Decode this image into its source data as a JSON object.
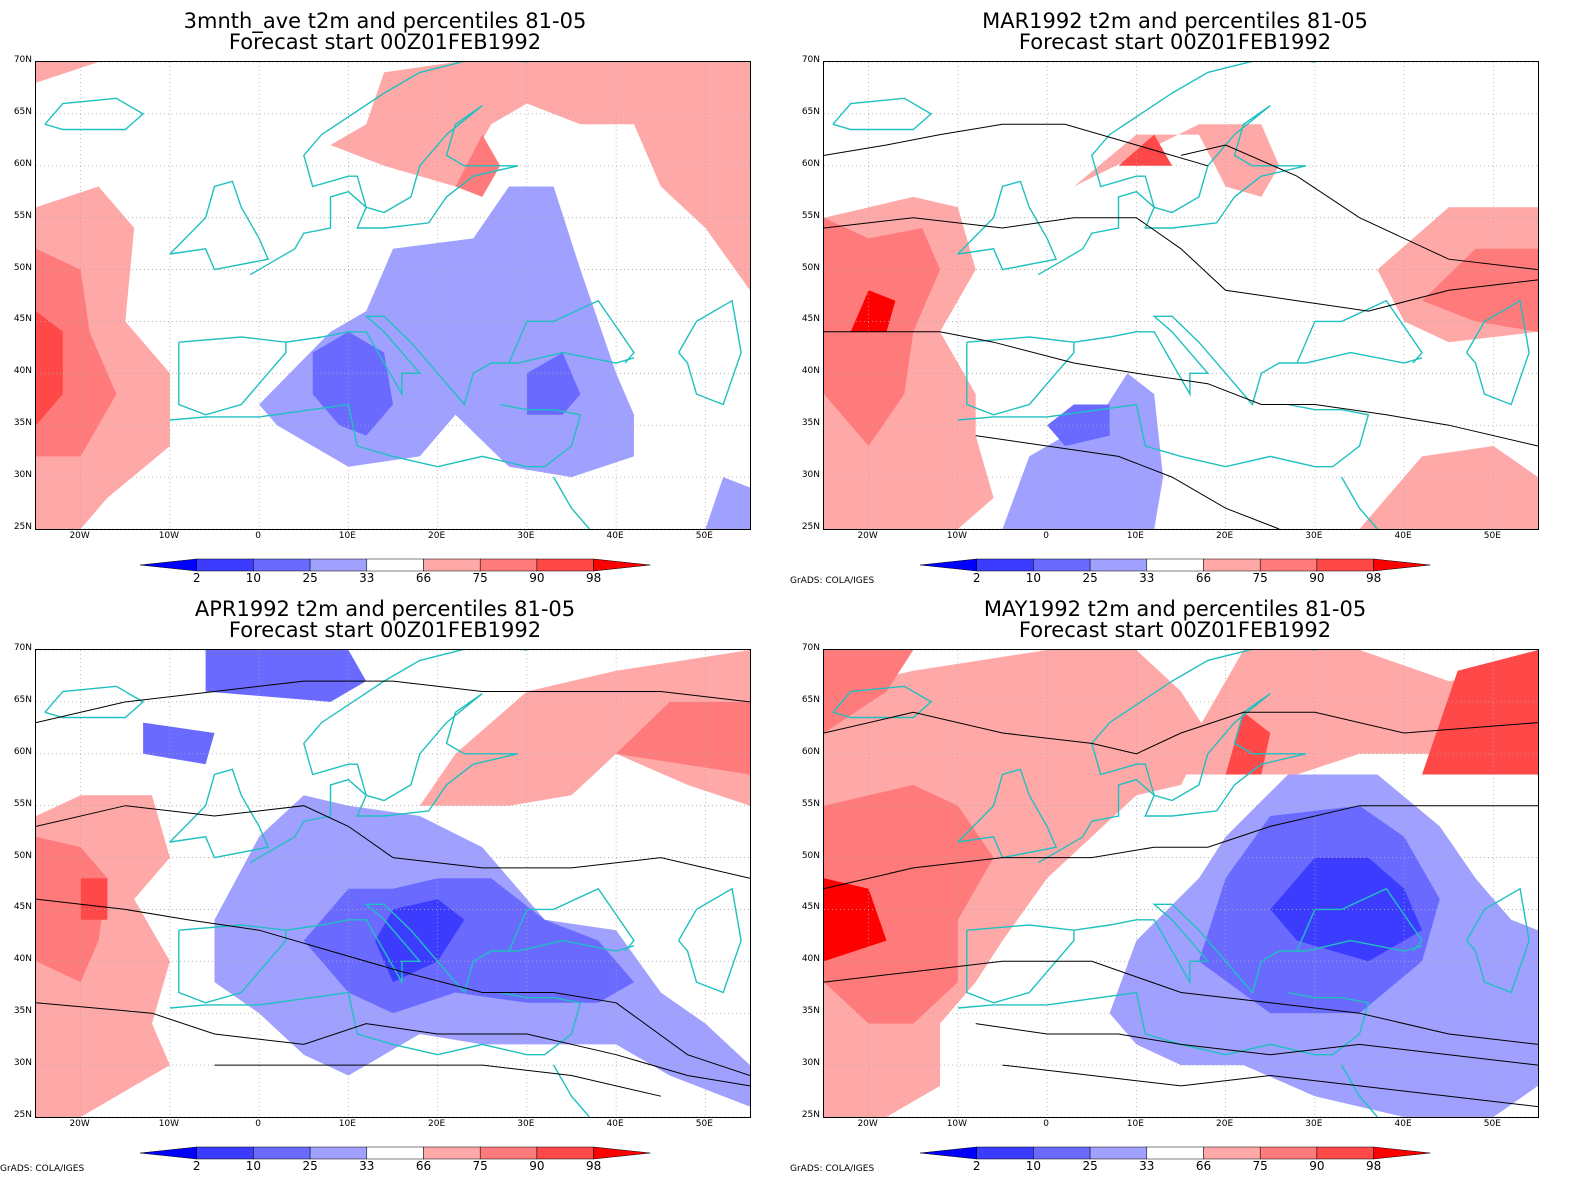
{
  "panels": [
    {
      "id": "p1",
      "title_line1": "3mnth_ave t2m and percentiles 81-05",
      "title_line2": "Forecast start 00Z01FEB1992",
      "has_contours": false,
      "show_credit": false
    },
    {
      "id": "p2",
      "title_line1": "MAR1992 t2m and percentiles 81-05",
      "title_line2": "Forecast start 00Z01FEB1992",
      "has_contours": true,
      "show_credit": true
    },
    {
      "id": "p3",
      "title_line1": "APR1992 t2m and percentiles 81-05",
      "title_line2": "Forecast start 00Z01FEB1992",
      "has_contours": true,
      "show_credit": true
    },
    {
      "id": "p4",
      "title_line1": "MAY1992 t2m and percentiles 81-05",
      "title_line2": "Forecast start 00Z01FEB1992",
      "has_contours": true,
      "show_credit": true
    }
  ],
  "lat_labels": [
    "70N",
    "65N",
    "60N",
    "55N",
    "50N",
    "45N",
    "40N",
    "35N",
    "30N",
    "25N"
  ],
  "lon_labels": [
    "20W",
    "10W",
    "0",
    "10E",
    "20E",
    "30E",
    "40E",
    "50E"
  ],
  "colorbar": {
    "labels": [
      "2",
      "10",
      "25",
      "33",
      "66",
      "75",
      "90",
      "98"
    ],
    "colors": [
      "#0000ff",
      "#3c3cff",
      "#6a6aff",
      "#a0a0ff",
      "#ffffff",
      "#ffa8a8",
      "#ff7a7a",
      "#ff4848",
      "#ff0000"
    ]
  },
  "credit_text": "GrADS: COLA/IGES",
  "colors": {
    "coast": "#20c0c0",
    "contour": "#000000",
    "grid": "#aaaaaa"
  }
}
